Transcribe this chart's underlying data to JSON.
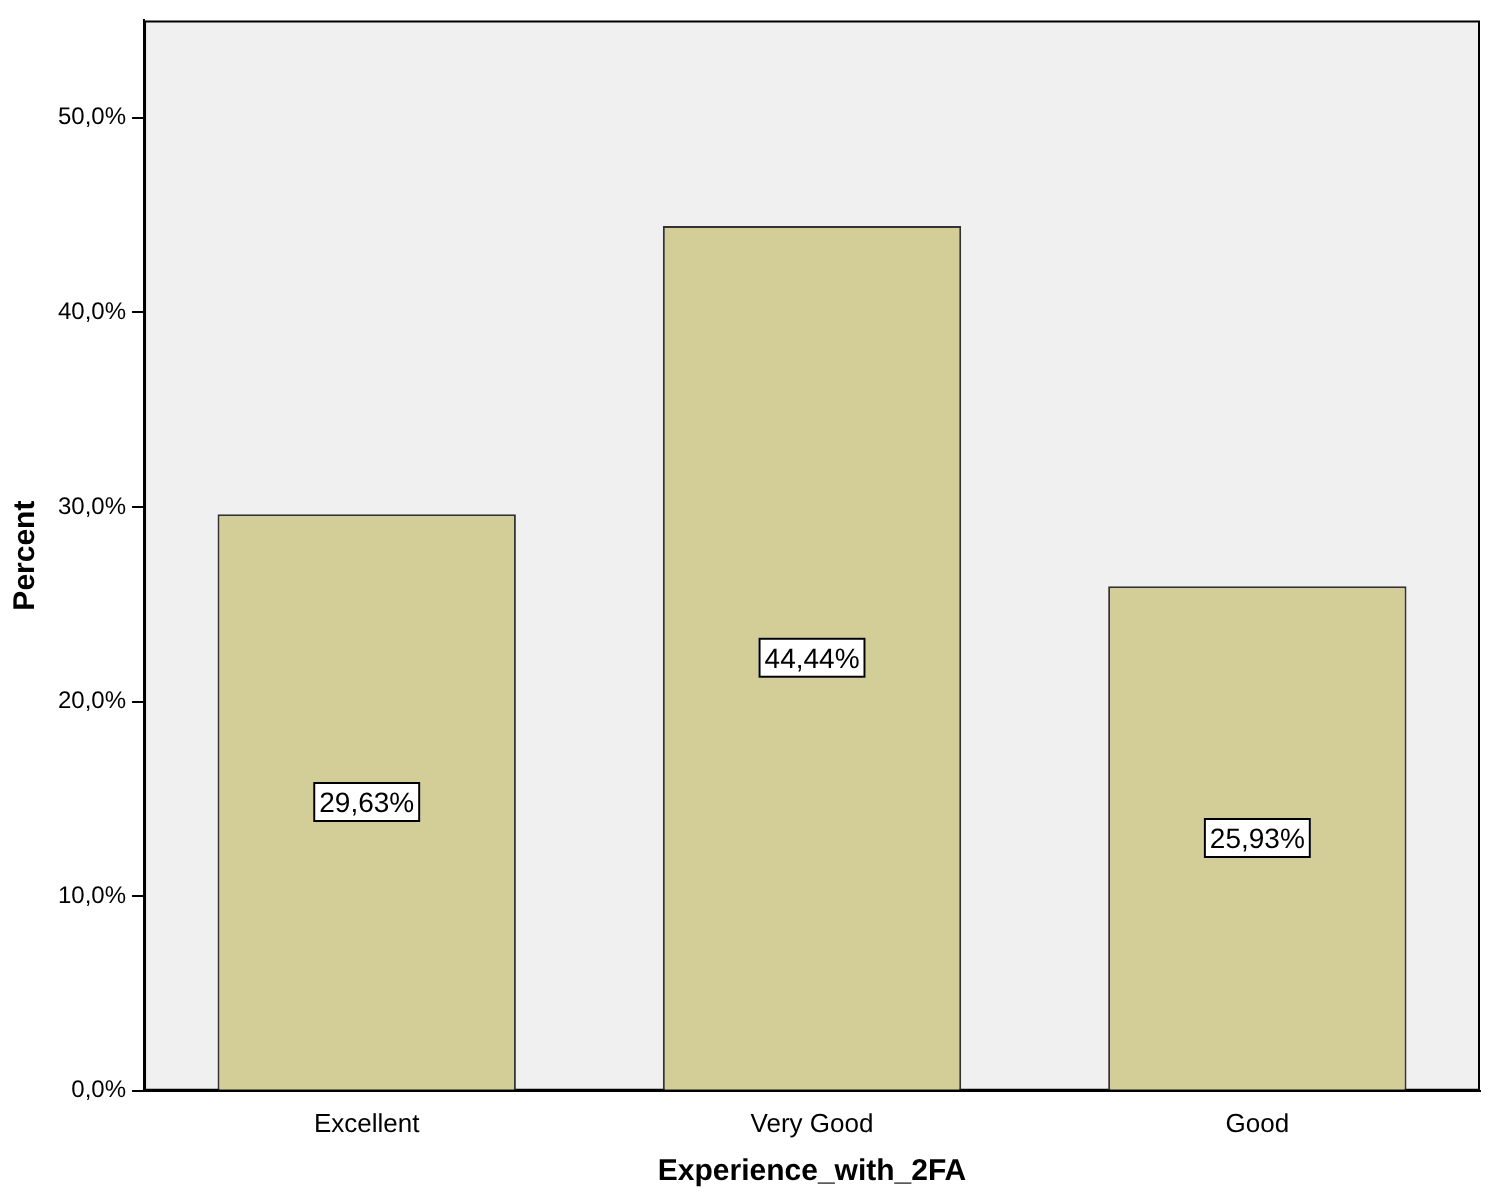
{
  "chart_data": {
    "type": "bar",
    "xlabel": "Experience_with_2FA",
    "ylabel": "Percent",
    "categories": [
      "Excellent",
      "Very Good",
      "Good"
    ],
    "values": [
      29.63,
      44.44,
      25.93
    ],
    "value_labels": [
      "29,63%",
      "44,44%",
      "25,93%"
    ],
    "color": "#d3ce98",
    "ylim": [
      0,
      55
    ],
    "yticks": [
      {
        "value": 0,
        "label": "0,0%"
      },
      {
        "value": 10,
        "label": "10,0%"
      },
      {
        "value": 20,
        "label": "20,0%"
      },
      {
        "value": 30,
        "label": "30,0%"
      },
      {
        "value": 40,
        "label": "40,0%"
      },
      {
        "value": 50,
        "label": "50,0%"
      }
    ],
    "grid": false,
    "legend": false
  }
}
